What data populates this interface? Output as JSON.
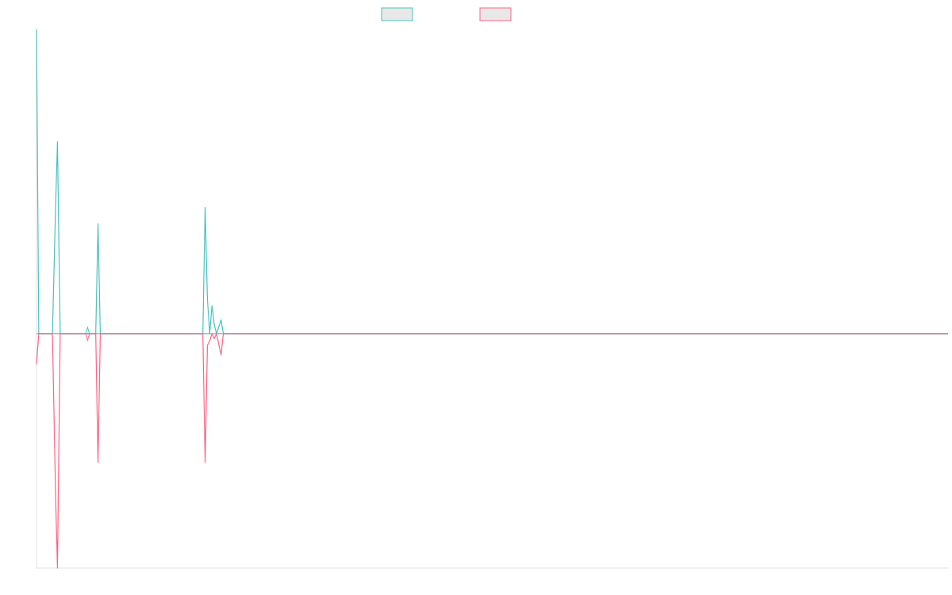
{
  "chart_data": {
    "type": "line",
    "title": "",
    "xlabel": "",
    "ylabel": "",
    "grid": false,
    "legend": "top-center",
    "x_range": [
      0,
      200
    ],
    "ylim": [
      -1,
      1.3
    ],
    "series": [
      {
        "color": "#4bc0c0",
        "fill": "#e8e8e8",
        "points": [
          [
            0,
            1.3
          ],
          [
            0.5,
            0
          ],
          [
            3.5,
            0
          ],
          [
            4.2,
            0.55
          ],
          [
            4.6,
            0.82
          ],
          [
            5.2,
            0
          ],
          [
            13,
            0
          ],
          [
            13.5,
            0.47
          ],
          [
            14,
            0
          ],
          [
            36.5,
            0
          ],
          [
            37,
            0.54
          ],
          [
            37.5,
            0.15
          ],
          [
            38,
            0
          ],
          [
            38.5,
            0.12
          ],
          [
            39,
            0.04
          ],
          [
            39.5,
            0
          ],
          [
            40.5,
            0.06
          ],
          [
            41,
            0
          ],
          [
            200,
            0
          ]
        ]
      },
      {
        "color": "#ff6384",
        "fill": "#e8e8e8",
        "points": [
          [
            0,
            -0.13
          ],
          [
            0.5,
            0
          ],
          [
            3.5,
            0
          ],
          [
            4.2,
            -0.7
          ],
          [
            4.6,
            -1
          ],
          [
            5.2,
            0
          ],
          [
            13,
            0
          ],
          [
            13.5,
            -0.55
          ],
          [
            14,
            0
          ],
          [
            36.5,
            0
          ],
          [
            37,
            -0.55
          ],
          [
            37.5,
            -0.05
          ],
          [
            38,
            -0.03
          ],
          [
            38.5,
            0
          ],
          [
            39,
            -0.02
          ],
          [
            39.5,
            0
          ],
          [
            40.5,
            -0.09
          ],
          [
            41,
            0
          ],
          [
            200,
            0
          ]
        ]
      }
    ],
    "markers": [
      {
        "series": 0,
        "x": 11.2,
        "y": 0.014
      },
      {
        "series": 1,
        "x": 11.2,
        "y": -0.014
      }
    ]
  }
}
